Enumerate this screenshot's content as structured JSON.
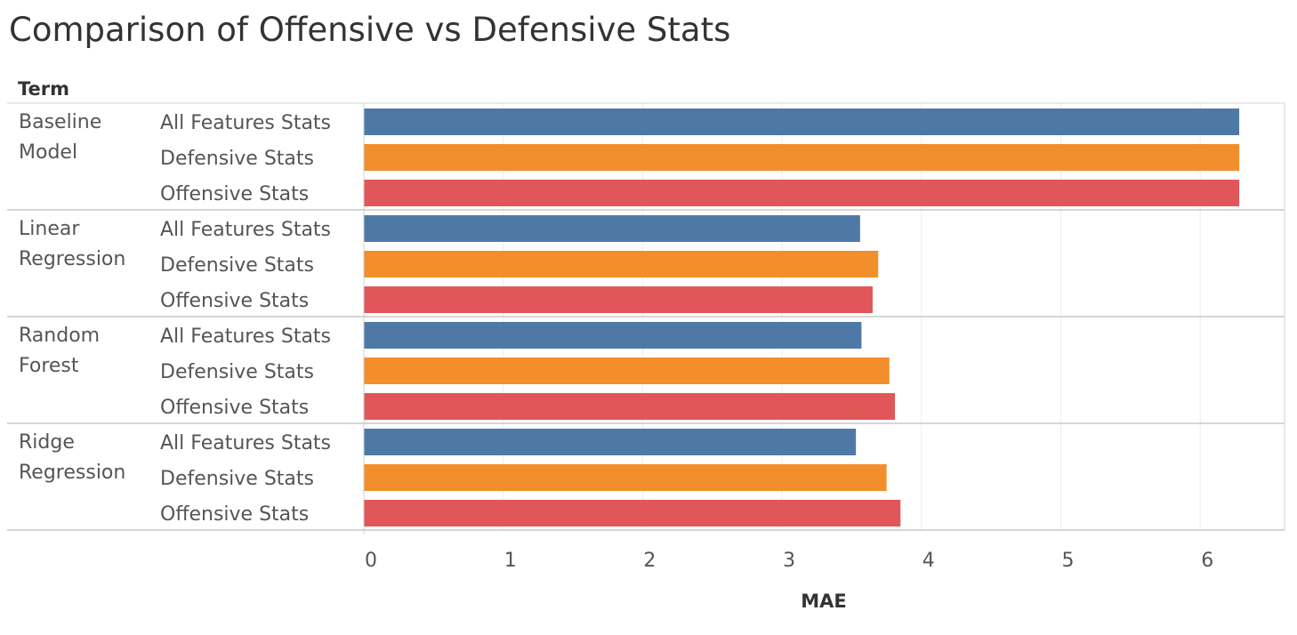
{
  "chart_data": {
    "type": "bar",
    "orientation": "horizontal",
    "title": "Comparison of Offensive vs Defensive Stats",
    "row_header": "Term",
    "xlabel": "MAE",
    "xlim": [
      0,
      6.6
    ],
    "xticks": [
      0,
      1,
      2,
      3,
      4,
      5,
      6
    ],
    "grid": true,
    "groups": [
      {
        "label_lines": [
          "Baseline",
          "Model"
        ],
        "bars": [
          {
            "category": "All Features Stats",
            "value": 6.28
          },
          {
            "category": "Defensive Stats",
            "value": 6.28
          },
          {
            "category": "Offensive Stats",
            "value": 6.28
          }
        ]
      },
      {
        "label_lines": [
          "Linear",
          "Regression"
        ],
        "bars": [
          {
            "category": "All Features Stats",
            "value": 3.56
          },
          {
            "category": "Defensive Stats",
            "value": 3.69
          },
          {
            "category": "Offensive Stats",
            "value": 3.65
          }
        ]
      },
      {
        "label_lines": [
          "Random",
          "Forest"
        ],
        "bars": [
          {
            "category": "All Features Stats",
            "value": 3.57
          },
          {
            "category": "Defensive Stats",
            "value": 3.77
          },
          {
            "category": "Offensive Stats",
            "value": 3.81
          }
        ]
      },
      {
        "label_lines": [
          "Ridge",
          "Regression"
        ],
        "bars": [
          {
            "category": "All Features Stats",
            "value": 3.53
          },
          {
            "category": "Defensive Stats",
            "value": 3.75
          },
          {
            "category": "Offensive Stats",
            "value": 3.85
          }
        ]
      }
    ],
    "colors": {
      "All Features Stats": "#4e79a7",
      "Defensive Stats": "#f28e2b",
      "Offensive Stats": "#e15759"
    }
  }
}
